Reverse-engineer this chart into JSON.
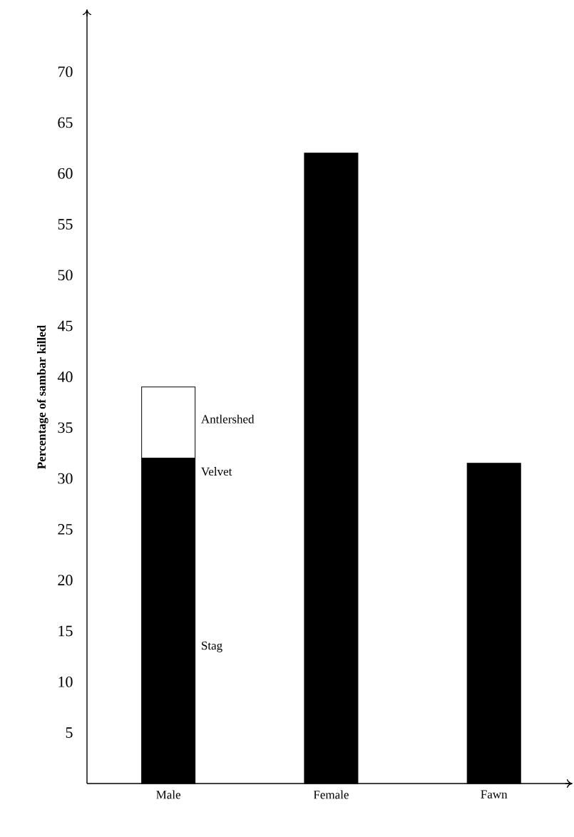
{
  "chart_data": {
    "type": "bar",
    "stacked": true,
    "ylabel": "Percentage of sambar killed",
    "categories": [
      "Male",
      "Female",
      "Fawn"
    ],
    "series": [
      {
        "name": "Stag",
        "color": "#000000",
        "values": [
          32,
          62,
          31.5
        ]
      },
      {
        "name": "Antlershed",
        "color": "#ffffff",
        "values": [
          7,
          null,
          null
        ]
      }
    ],
    "annotations": [
      "Velvet"
    ],
    "ylim": [
      0,
      76
    ],
    "yticks": [
      5,
      10,
      15,
      20,
      25,
      30,
      35,
      40,
      45,
      50,
      55,
      60,
      65,
      70
    ]
  }
}
